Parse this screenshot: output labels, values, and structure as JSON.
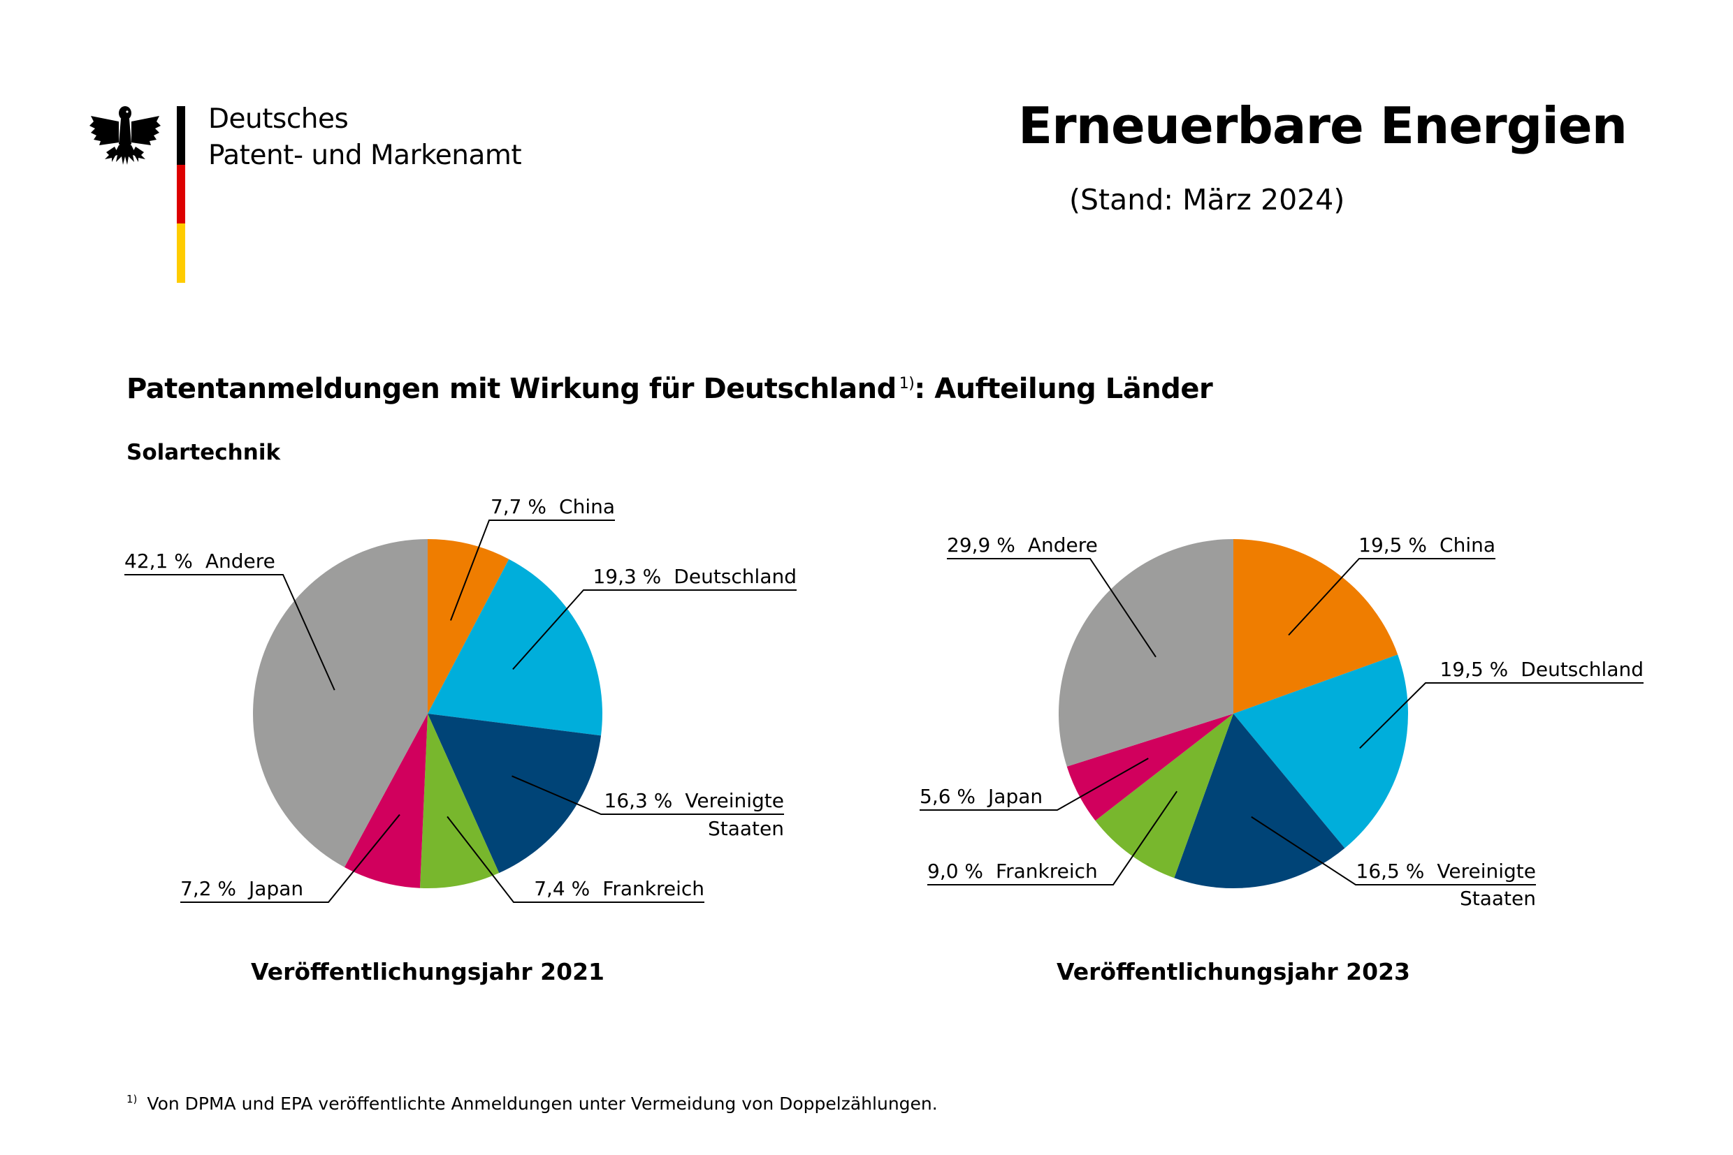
{
  "header": {
    "org_line1": "Deutsches",
    "org_line2": "Patent- und Markenamt",
    "title": "Erneuerbare Energien",
    "stand": "(Stand: März 2024)"
  },
  "colors": {
    "flag_black": "#000000",
    "flag_red": "#dd0000",
    "flag_gold": "#ffcc00"
  },
  "chart_title": "Patentanmeldungen mit Wirkung für Deutschland",
  "chart_title_sup": "1)",
  "chart_title_suffix": ": Aufteilung Länder",
  "subtitle": "Solartechnik",
  "footnote_marker": "1)",
  "footnote": "Von DPMA und EPA veröffentlichte Anmeldungen unter Vermeidung von Doppelzählungen.",
  "chart_data": [
    {
      "type": "pie",
      "title": "Veröffentlichungsjahr 2021",
      "unit": "%",
      "slices": [
        {
          "label": "China",
          "value": 7.7,
          "display": "7,7 %",
          "color": "#ef7d00"
        },
        {
          "label": "Deutschland",
          "value": 19.3,
          "display": "19,3 %",
          "color": "#00aedb"
        },
        {
          "label": "Vereinigte Staaten",
          "label_lines": [
            "Vereinigte",
            "Staaten"
          ],
          "value": 16.3,
          "display": "16,3 %",
          "color": "#004477"
        },
        {
          "label": "Frankreich",
          "value": 7.4,
          "display": "7,4 %",
          "color": "#78b72d"
        },
        {
          "label": "Japan",
          "value": 7.2,
          "display": "7,2 %",
          "color": "#d1005d"
        },
        {
          "label": "Andere",
          "value": 42.1,
          "display": "42,1 %",
          "color": "#9d9d9c"
        }
      ]
    },
    {
      "type": "pie",
      "title": "Veröffentlichungsjahr 2023",
      "unit": "%",
      "slices": [
        {
          "label": "China",
          "value": 19.5,
          "display": "19,5 %",
          "color": "#ef7d00"
        },
        {
          "label": "Deutschland",
          "value": 19.5,
          "display": "19,5 %",
          "color": "#00aedb"
        },
        {
          "label": "Vereinigte Staaten",
          "label_lines": [
            "Vereinigte",
            "Staaten"
          ],
          "value": 16.5,
          "display": "16,5 %",
          "color": "#004477"
        },
        {
          "label": "Frankreich",
          "value": 9.0,
          "display": "9,0 %",
          "color": "#78b72d"
        },
        {
          "label": "Japan",
          "value": 5.6,
          "display": "5,6 %",
          "color": "#d1005d"
        },
        {
          "label": "Andere",
          "value": 29.9,
          "display": "29,9 %",
          "color": "#9d9d9c"
        }
      ]
    }
  ]
}
